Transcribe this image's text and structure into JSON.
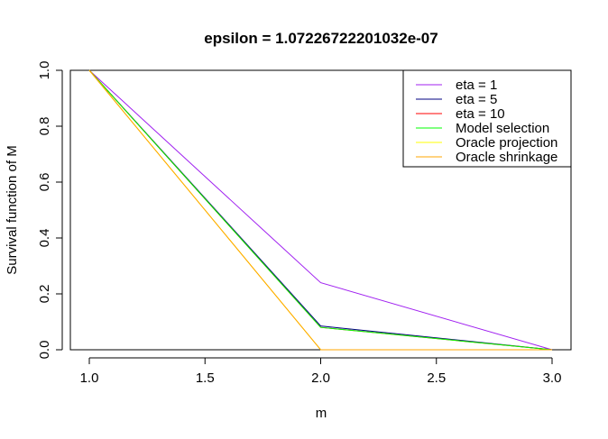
{
  "chart_data": {
    "type": "line",
    "title": "epsilon = 1.07226722201032e-07",
    "xlabel": "m",
    "ylabel": "Survival function of M",
    "xlim": [
      1.0,
      3.0
    ],
    "ylim": [
      0.0,
      1.0
    ],
    "xticks": [
      "1.0",
      "1.5",
      "2.0",
      "2.5",
      "3.0"
    ],
    "yticks": [
      "0.0",
      "0.2",
      "0.4",
      "0.6",
      "0.8",
      "1.0"
    ],
    "x": [
      1,
      2,
      3
    ],
    "grid": false,
    "legend_position": "top-right",
    "series": [
      {
        "name": "eta = 1",
        "color": "#a020f0",
        "values": [
          1.0,
          0.24,
          0.0
        ]
      },
      {
        "name": "eta = 5",
        "color": "#000080",
        "values": [
          1.0,
          0.085,
          0.0
        ]
      },
      {
        "name": "eta = 10",
        "color": "#ff0000",
        "values": [
          1.0,
          0.08,
          0.0
        ]
      },
      {
        "name": "Model selection",
        "color": "#00ff00",
        "values": [
          1.0,
          0.08,
          0.0
        ]
      },
      {
        "name": "Oracle projection",
        "color": "#ffff00",
        "values": [
          1.0,
          0.0,
          0.0
        ]
      },
      {
        "name": "Oracle shrinkage",
        "color": "#ffa500",
        "values": [
          1.0,
          0.0,
          0.0
        ]
      }
    ]
  }
}
